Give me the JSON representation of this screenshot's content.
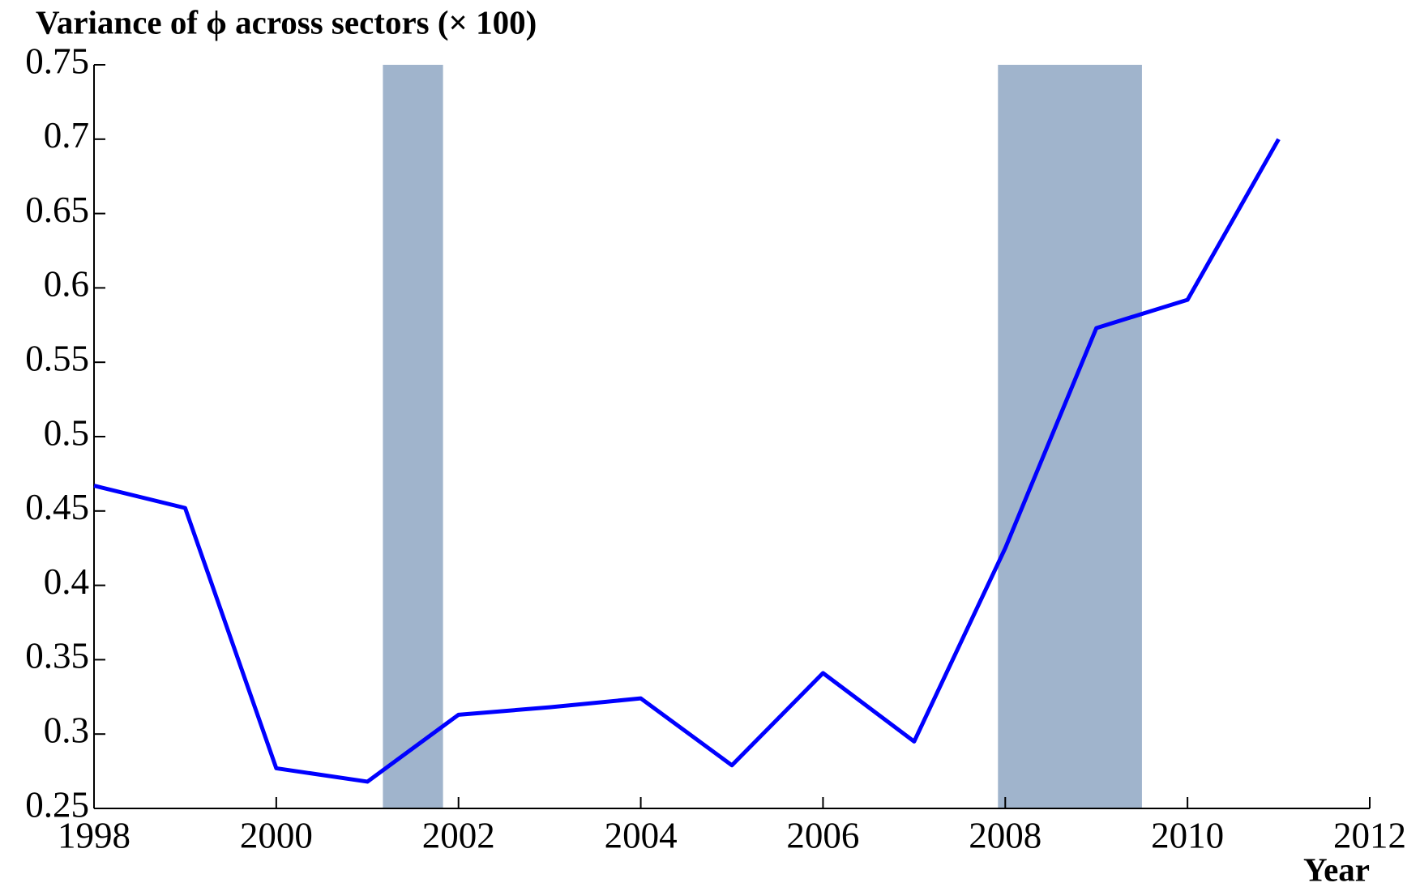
{
  "chart_data": {
    "type": "line",
    "title": "Variance of ϕ across sectors (× 100)",
    "x_label": "Year",
    "x": [
      1998,
      1999,
      2000,
      2001,
      2002,
      2003,
      2004,
      2005,
      2006,
      2007,
      2008,
      2009,
      2010,
      2011
    ],
    "series": [
      {
        "color": "#0000ff",
        "values": [
          0.467,
          0.452,
          0.277,
          0.268,
          0.313,
          0.318,
          0.324,
          0.279,
          0.341,
          0.295,
          0.425,
          0.573,
          0.592,
          0.7
        ]
      }
    ],
    "shaded_ranges": [
      [
        2001.17,
        2001.83
      ],
      [
        2007.92,
        2009.5
      ]
    ],
    "shade_color": "#a0b4cc",
    "xlim": [
      1998,
      2012
    ],
    "xticks": [
      1998,
      2000,
      2002,
      2004,
      2006,
      2008,
      2010,
      2012
    ],
    "ylim": [
      0.25,
      0.75
    ],
    "yticks": [
      0.25,
      0.3,
      0.35,
      0.4,
      0.45,
      0.5,
      0.55,
      0.6,
      0.65,
      0.7,
      0.75
    ],
    "grid": false
  }
}
